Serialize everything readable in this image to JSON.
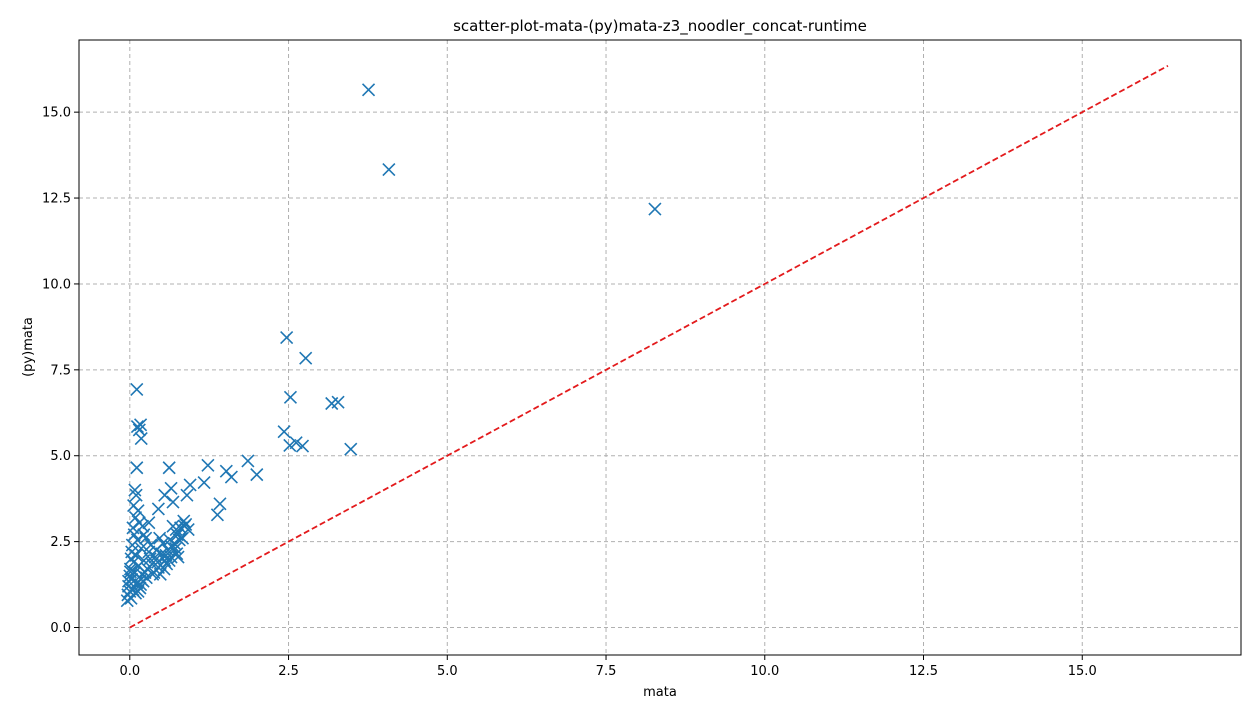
{
  "chart_data": {
    "type": "scatter",
    "title": "scatter-plot-mata-(py)mata-z3_noodler_concat-runtime",
    "xlabel": "mata",
    "ylabel": "(py)mata",
    "xlim": [
      -0.8,
      17.5
    ],
    "ylim": [
      -0.8,
      17.1
    ],
    "x_ticks": [
      "0.0",
      "2.5",
      "5.0",
      "7.5",
      "10.0",
      "12.5",
      "15.0"
    ],
    "y_ticks": [
      "0.0",
      "2.5",
      "5.0",
      "7.5",
      "10.0",
      "12.5",
      "15.0"
    ],
    "grid": true,
    "marker": "x",
    "series": [
      {
        "color": "#1f77b4",
        "points": [
          [
            3.76,
            15.65
          ],
          [
            4.08,
            13.33
          ],
          [
            8.27,
            12.18
          ],
          [
            2.47,
            8.44
          ],
          [
            2.77,
            7.84
          ],
          [
            2.53,
            6.7
          ],
          [
            3.18,
            6.52
          ],
          [
            3.28,
            6.56
          ],
          [
            2.43,
            5.7
          ],
          [
            2.52,
            5.3
          ],
          [
            2.62,
            5.38
          ],
          [
            2.72,
            5.28
          ],
          [
            3.48,
            5.19
          ],
          [
            1.86,
            4.85
          ],
          [
            2.0,
            4.45
          ],
          [
            1.23,
            4.72
          ],
          [
            1.52,
            4.55
          ],
          [
            1.6,
            4.38
          ],
          [
            1.17,
            4.22
          ],
          [
            1.42,
            3.6
          ],
          [
            1.38,
            3.28
          ],
          [
            0.95,
            4.15
          ],
          [
            0.9,
            3.85
          ],
          [
            0.62,
            4.65
          ],
          [
            0.65,
            4.05
          ],
          [
            0.68,
            3.65
          ],
          [
            0.45,
            3.45
          ],
          [
            0.55,
            3.85
          ],
          [
            0.11,
            6.93
          ],
          [
            0.12,
            5.85
          ],
          [
            0.17,
            5.9
          ],
          [
            0.15,
            5.75
          ],
          [
            0.18,
            5.5
          ],
          [
            0.11,
            4.65
          ],
          [
            0.08,
            4.0
          ],
          [
            0.1,
            3.85
          ],
          [
            0.06,
            3.55
          ],
          [
            0.13,
            3.4
          ],
          [
            0.09,
            3.2
          ],
          [
            0.15,
            3.05
          ],
          [
            0.05,
            2.9
          ],
          [
            0.07,
            2.7
          ],
          [
            0.12,
            2.55
          ],
          [
            0.04,
            2.4
          ],
          [
            0.18,
            2.3
          ],
          [
            0.03,
            2.2
          ],
          [
            0.1,
            2.1
          ],
          [
            0.02,
            2.0
          ],
          [
            0.06,
            1.9
          ],
          [
            0.14,
            1.8
          ],
          [
            0.01,
            1.7
          ],
          [
            0.08,
            1.6
          ],
          [
            0.0,
            1.5
          ],
          [
            0.03,
            1.4
          ],
          [
            0.11,
            1.3
          ],
          [
            -0.02,
            1.2
          ],
          [
            0.05,
            1.1
          ],
          [
            0.09,
            1.0
          ],
          [
            -0.03,
            0.95
          ],
          [
            0.02,
            0.85
          ],
          [
            -0.04,
            0.78
          ],
          [
            0.0,
            1.05
          ],
          [
            -0.02,
            1.35
          ],
          [
            0.01,
            1.62
          ],
          [
            0.2,
            2.95
          ],
          [
            0.25,
            2.6
          ],
          [
            0.3,
            2.2
          ],
          [
            0.22,
            1.95
          ],
          [
            0.28,
            1.7
          ],
          [
            0.35,
            1.85
          ],
          [
            0.4,
            2.05
          ],
          [
            0.38,
            1.6
          ],
          [
            0.45,
            1.75
          ],
          [
            0.5,
            2.15
          ],
          [
            0.55,
            1.95
          ],
          [
            0.48,
            1.55
          ],
          [
            0.6,
            2.25
          ],
          [
            0.65,
            2.05
          ],
          [
            0.58,
            1.85
          ],
          [
            0.7,
            2.45
          ],
          [
            0.75,
            2.7
          ],
          [
            0.72,
            2.3
          ],
          [
            0.8,
            2.9
          ],
          [
            0.85,
            3.1
          ],
          [
            0.78,
            2.55
          ],
          [
            0.88,
            3.0
          ],
          [
            0.92,
            2.85
          ],
          [
            0.83,
            2.6
          ],
          [
            0.68,
            2.95
          ],
          [
            0.74,
            2.15
          ],
          [
            0.62,
            1.95
          ],
          [
            0.52,
            2.45
          ],
          [
            0.42,
            2.25
          ],
          [
            0.32,
            2.0
          ],
          [
            0.26,
            1.45
          ],
          [
            0.21,
            1.35
          ],
          [
            0.17,
            1.25
          ],
          [
            0.24,
            1.6
          ],
          [
            0.19,
            1.55
          ],
          [
            0.16,
            1.15
          ],
          [
            0.13,
            1.05
          ],
          [
            0.18,
            1.4
          ],
          [
            0.33,
            2.4
          ],
          [
            0.47,
            2.6
          ],
          [
            0.57,
            2.1
          ],
          [
            0.66,
            2.35
          ],
          [
            0.76,
            2.05
          ],
          [
            0.86,
            2.95
          ],
          [
            0.3,
            3.05
          ],
          [
            0.22,
            2.7
          ],
          [
            0.36,
            1.55
          ],
          [
            0.44,
            1.9
          ],
          [
            0.54,
            1.7
          ],
          [
            0.63,
            2.55
          ],
          [
            0.73,
            2.85
          ]
        ]
      },
      {
        "kind": "reference-line",
        "color": "#e31a1c",
        "style": "dashed",
        "from": [
          0.0,
          0.0
        ],
        "to": [
          16.35,
          16.35
        ]
      }
    ]
  }
}
